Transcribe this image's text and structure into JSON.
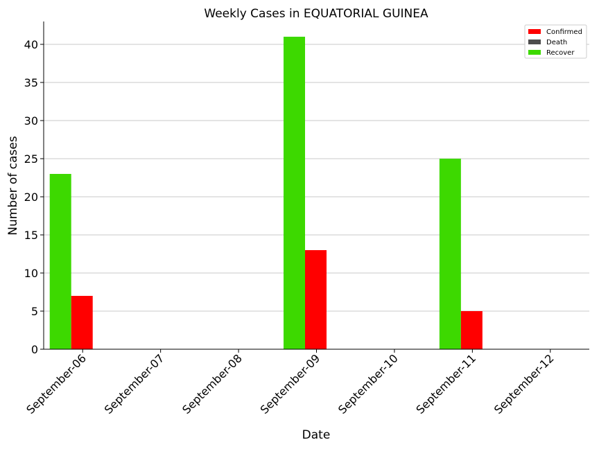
{
  "chart_data": {
    "type": "bar",
    "title": "Weekly Cases in EQUATORIAL GUINEA",
    "xlabel": "Date",
    "ylabel": "Number of cases",
    "ylim": [
      0,
      43
    ],
    "yticks": [
      0,
      5,
      10,
      15,
      20,
      25,
      30,
      35,
      40
    ],
    "grid": "horizontal",
    "legend_position": "top-right",
    "categories": [
      "September-06",
      "September-07",
      "September-08",
      "September-09",
      "September-10",
      "September-11",
      "September-12"
    ],
    "series": [
      {
        "name": "Confirmed",
        "color": "#ff0000",
        "values": [
          7,
          0,
          0,
          13,
          0,
          5,
          0
        ]
      },
      {
        "name": "Death",
        "color": "#4d4d4d",
        "values": [
          0,
          0,
          0,
          0,
          0,
          0,
          0
        ]
      },
      {
        "name": "Recover",
        "color": "#3dd900",
        "values": [
          23,
          0,
          0,
          41,
          0,
          25,
          0
        ]
      }
    ]
  }
}
